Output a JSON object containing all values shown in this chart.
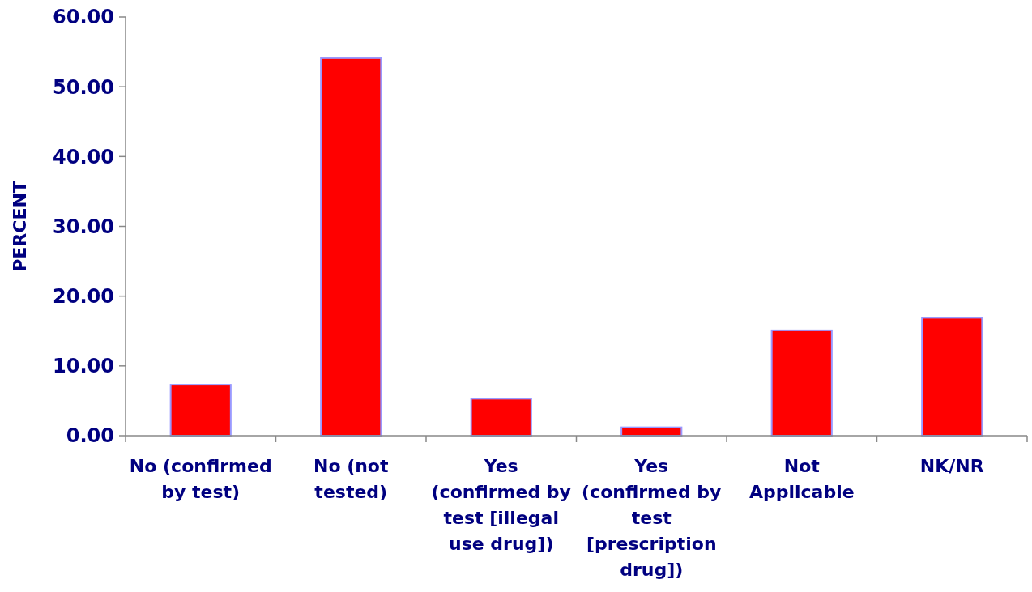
{
  "chart_data": {
    "type": "bar",
    "ylabel": "PERCENT",
    "categories": [
      "No (confirmed by test)",
      "No (not tested)",
      "Yes (confirmed by test [illegal use drug])",
      "Yes (confirmed by test [prescription drug])",
      "Not Applicable",
      "NK/NR"
    ],
    "values": [
      7.3,
      54.1,
      5.3,
      1.2,
      15.1,
      16.9
    ],
    "color": "#ff0000",
    "ylim": [
      0,
      60
    ],
    "yticks": [
      {
        "value": 0,
        "label": "0.00"
      },
      {
        "value": 10,
        "label": "10.00"
      },
      {
        "value": 20,
        "label": "20.00"
      },
      {
        "value": 30,
        "label": "30.00"
      },
      {
        "value": 40,
        "label": "40.00"
      },
      {
        "value": 50,
        "label": "50.00"
      },
      {
        "value": 60,
        "label": "60.00"
      }
    ],
    "grid": false
  }
}
